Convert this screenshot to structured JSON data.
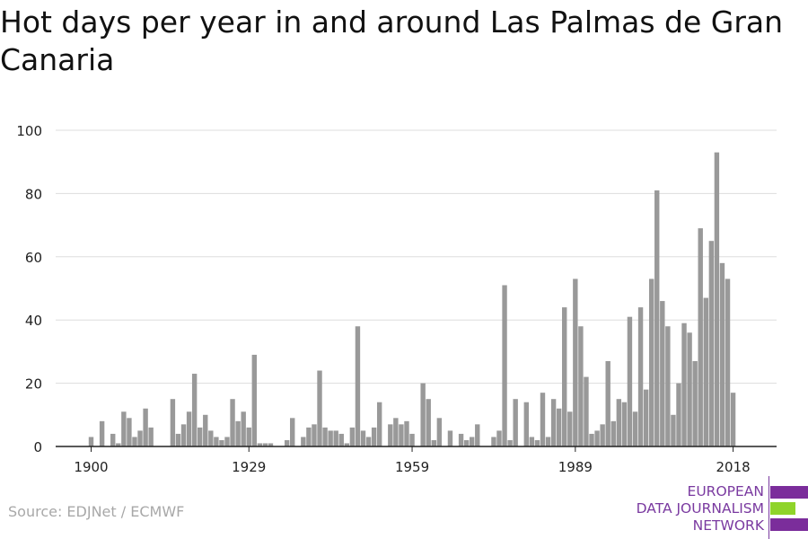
{
  "title": "Hot days per year in and around Las Palmas de Gran Canaria",
  "source": "Source: EDJNet / ECMWF",
  "logo": {
    "line1": "EUROPEAN",
    "line2": "DATA JOURNALISM",
    "line3": "NETWORK",
    "colors": {
      "purple": "#7b2d9b",
      "green": "#8fd42a"
    }
  },
  "colors": {
    "bar": "#999999",
    "grid": "#dddddd",
    "axis": "#222222"
  },
  "chart_data": {
    "type": "bar",
    "title": "Hot days per year in and around Las Palmas de Gran Canaria",
    "xlabel": "",
    "ylabel": "",
    "ylim": [
      0,
      100
    ],
    "yticks": [
      0,
      20,
      40,
      60,
      80,
      100
    ],
    "xticks": [
      1900,
      1929,
      1959,
      1989,
      2018
    ],
    "start_year": 1900,
    "values": [
      3,
      0,
      8,
      0,
      4,
      1,
      11,
      9,
      3,
      5,
      12,
      6,
      0,
      0,
      0,
      15,
      4,
      7,
      11,
      23,
      6,
      10,
      5,
      3,
      2,
      3,
      15,
      8,
      11,
      6,
      29,
      1,
      1,
      1,
      0,
      0,
      2,
      9,
      0,
      3,
      6,
      7,
      24,
      6,
      5,
      5,
      4,
      1,
      6,
      38,
      5,
      3,
      6,
      14,
      0,
      7,
      9,
      7,
      8,
      4,
      0,
      20,
      15,
      2,
      9,
      0,
      5,
      0,
      4,
      2,
      3,
      7,
      0,
      0,
      3,
      5,
      51,
      2,
      15,
      0,
      14,
      3,
      2,
      17,
      3,
      15,
      12,
      44,
      11,
      53,
      38,
      22,
      4,
      5,
      7,
      27,
      8,
      15,
      14,
      41,
      11,
      44,
      18,
      53,
      81,
      46,
      38,
      10,
      20,
      39,
      36,
      27,
      69,
      47,
      65,
      93,
      58,
      53,
      17
    ]
  }
}
